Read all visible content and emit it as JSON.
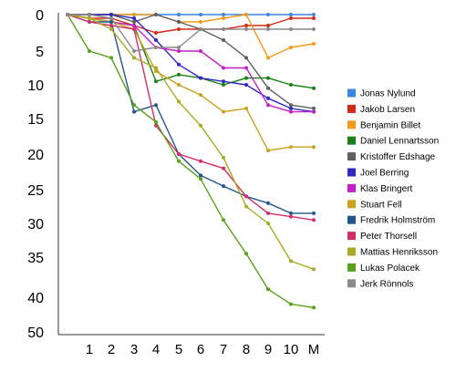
{
  "chart_data": {
    "type": "line",
    "title": "",
    "xlabel": "",
    "ylabel": "",
    "categories": [
      "",
      "1",
      "2",
      "3",
      "4",
      "5",
      "6",
      "7",
      "8",
      "9",
      "10",
      "M"
    ],
    "y_ticks": [
      0,
      5,
      10,
      15,
      20,
      25,
      30,
      35,
      40,
      50
    ],
    "y_inverted": true,
    "grid": false,
    "legend_position": "right",
    "series": [
      {
        "name": "Jonas Nylund",
        "color": "#3d85e0",
        "values": [
          0,
          0,
          0,
          0,
          0,
          0,
          0,
          0,
          0,
          0,
          0,
          0
        ]
      },
      {
        "name": "Jakob Larsen",
        "color": "#d42a16",
        "values": [
          0,
          0.5,
          0.5,
          1.5,
          2.5,
          2,
          2,
          2,
          1.5,
          1.5,
          0.5,
          0.5
        ]
      },
      {
        "name": "Benjamin Billet",
        "color": "#f49a1a",
        "values": [
          0,
          0,
          0,
          0,
          0,
          1,
          1,
          0.5,
          0,
          6,
          4.5,
          4
        ]
      },
      {
        "name": "Daniel Lennartsson",
        "color": "#178317",
        "values": [
          0,
          0.5,
          1,
          1.5,
          9.5,
          8.5,
          9,
          10,
          9,
          9,
          10,
          10.5
        ]
      },
      {
        "name": "Kristoffer Edshage",
        "color": "#5f5f5f",
        "values": [
          0,
          0,
          0,
          1,
          0,
          1,
          2,
          3.5,
          6,
          10.5,
          13,
          13.5
        ]
      },
      {
        "name": "Joel Berring",
        "color": "#2f28c3",
        "values": [
          0,
          0,
          0,
          0.5,
          3.5,
          7,
          9,
          9.5,
          10,
          12,
          13.5,
          14
        ]
      },
      {
        "name": "Klas Bringert",
        "color": "#c51fc7",
        "values": [
          0,
          0.5,
          1,
          1.5,
          4.5,
          5,
          5,
          7.5,
          7.5,
          13,
          14,
          14
        ]
      },
      {
        "name": "Stuart Fell",
        "color": "#cba21c",
        "values": [
          0,
          0.5,
          1,
          2,
          8,
          10,
          11.5,
          14,
          13.5,
          19.5,
          19,
          19
        ]
      },
      {
        "name": "Fredrik Holmström",
        "color": "#23578c",
        "values": [
          0,
          1,
          1,
          14,
          13,
          20,
          23,
          24.5,
          26,
          27,
          28.5,
          28.5
        ]
      },
      {
        "name": "Peter Thorsell",
        "color": "#d42d68",
        "values": [
          0,
          1,
          1.5,
          2,
          16,
          20,
          21,
          22,
          26,
          28.5,
          29,
          29.5
        ]
      },
      {
        "name": "Mattias Henriksson",
        "color": "#a7ac24",
        "values": [
          0,
          0.5,
          2,
          6,
          7.5,
          12.5,
          16,
          20.5,
          27.5,
          30,
          35.5,
          36.5
        ]
      },
      {
        "name": "Lukas Polacek",
        "color": "#57a21a",
        "values": [
          0,
          5,
          6,
          13,
          15.5,
          21,
          23.5,
          29.5,
          34.5,
          39,
          42,
          43
        ]
      },
      {
        "name": "Jerk Rönnols",
        "color": "#8a8a8a",
        "values": [
          0,
          0,
          0.5,
          5,
          4.5,
          4.5,
          2,
          2,
          2,
          2,
          2,
          2
        ]
      }
    ]
  }
}
